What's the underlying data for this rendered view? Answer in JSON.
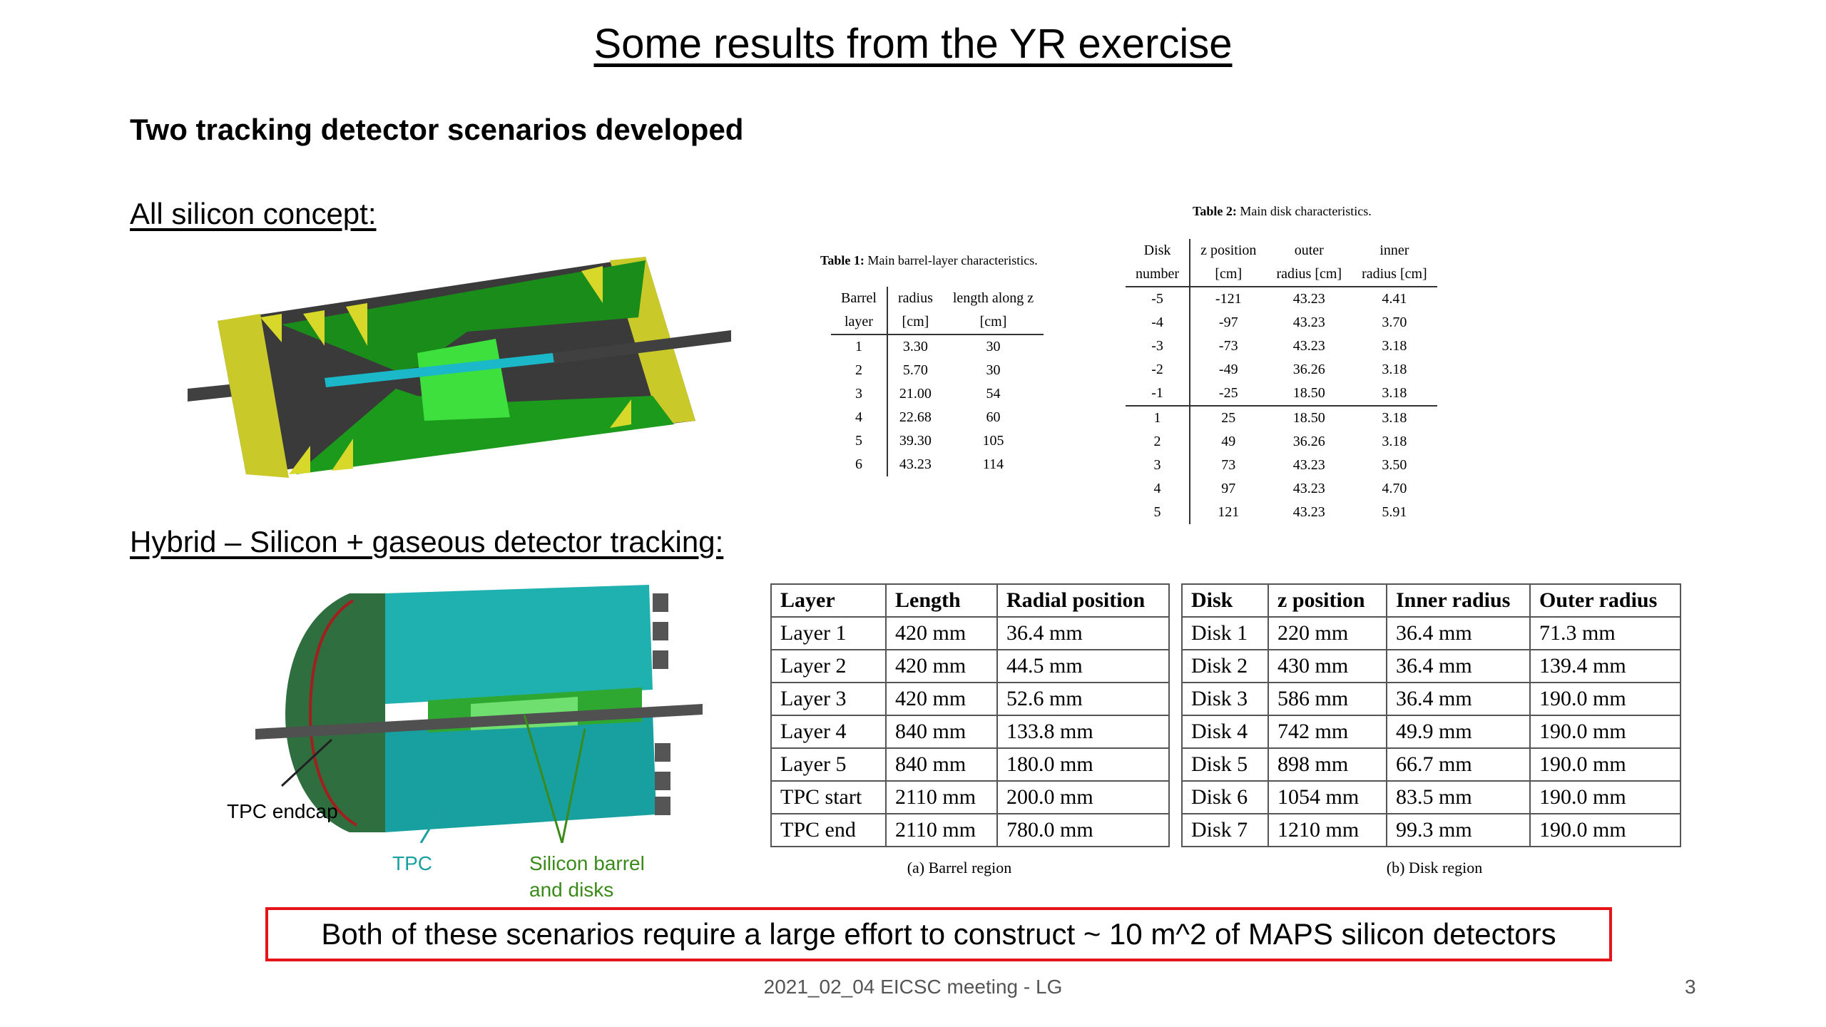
{
  "slide": {
    "title": "Some results from the YR exercise",
    "subtitle": "Two tracking detector scenarios developed",
    "section1": "All silicon concept:",
    "section2": "Hybrid – Silicon + gaseous detector tracking:",
    "conclusion": "Both of these scenarios require a large effort to construct ~ 10 m^2 of MAPS silicon detectors",
    "footer": "2021_02_04 EICSC meeting - LG",
    "page_number": "3"
  },
  "figure2_labels": {
    "tpc_endcap": "TPC endcap",
    "tpc": "TPC",
    "silicon_line1": "Silicon barrel",
    "silicon_line2": "and disks"
  },
  "colors": {
    "conclusion_border": "#e8141b",
    "tpc_label": "#1aa0a0",
    "silicon_label": "#3a8a1a"
  },
  "table1": {
    "caption_bold": "Table 1:",
    "caption_text": "Main barrel-layer characteristics.",
    "headers": [
      [
        "Barrel",
        "radius",
        "length along z"
      ],
      [
        "layer",
        "[cm]",
        "[cm]"
      ]
    ],
    "rows": [
      [
        "1",
        "3.30",
        "30"
      ],
      [
        "2",
        "5.70",
        "30"
      ],
      [
        "3",
        "21.00",
        "54"
      ],
      [
        "4",
        "22.68",
        "60"
      ],
      [
        "5",
        "39.30",
        "105"
      ],
      [
        "6",
        "43.23",
        "114"
      ]
    ]
  },
  "table2": {
    "caption_bold": "Table 2:",
    "caption_text": "Main disk characteristics.",
    "headers": [
      [
        "Disk",
        "z position",
        "outer",
        "inner"
      ],
      [
        "number",
        "[cm]",
        "radius [cm]",
        "radius [cm]"
      ]
    ],
    "rows": [
      [
        "-5",
        "-121",
        "43.23",
        "4.41"
      ],
      [
        "-4",
        "-97",
        "43.23",
        "3.70"
      ],
      [
        "-3",
        "-73",
        "43.23",
        "3.18"
      ],
      [
        "-2",
        "-49",
        "36.26",
        "3.18"
      ],
      [
        "-1",
        "-25",
        "18.50",
        "3.18"
      ],
      [
        "1",
        "25",
        "18.50",
        "3.18"
      ],
      [
        "2",
        "49",
        "36.26",
        "3.18"
      ],
      [
        "3",
        "73",
        "43.23",
        "3.50"
      ],
      [
        "4",
        "97",
        "43.23",
        "4.70"
      ],
      [
        "5",
        "121",
        "43.23",
        "5.91"
      ]
    ]
  },
  "table3": {
    "caption": "(a) Barrel region",
    "headers": [
      "Layer",
      "Length",
      "Radial position"
    ],
    "rows": [
      [
        "Layer 1",
        "420 mm",
        "36.4 mm"
      ],
      [
        "Layer 2",
        "420 mm",
        "44.5 mm"
      ],
      [
        "Layer 3",
        "420 mm",
        "52.6 mm"
      ],
      [
        "Layer 4",
        "840 mm",
        "133.8 mm"
      ],
      [
        "Layer 5",
        "840 mm",
        "180.0 mm"
      ],
      [
        "TPC start",
        "2110 mm",
        "200.0 mm"
      ],
      [
        "TPC end",
        "2110 mm",
        "780.0 mm"
      ]
    ]
  },
  "table4": {
    "caption": "(b) Disk region",
    "headers": [
      "Disk",
      "z position",
      "Inner radius",
      "Outer radius"
    ],
    "rows": [
      [
        "Disk 1",
        "220 mm",
        "36.4 mm",
        "71.3 mm"
      ],
      [
        "Disk 2",
        "430 mm",
        "36.4 mm",
        "139.4 mm"
      ],
      [
        "Disk 3",
        "586 mm",
        "36.4 mm",
        "190.0 mm"
      ],
      [
        "Disk 4",
        "742 mm",
        "49.9 mm",
        "190.0 mm"
      ],
      [
        "Disk 5",
        "898 mm",
        "66.7 mm",
        "190.0 mm"
      ],
      [
        "Disk 6",
        "1054 mm",
        "83.5 mm",
        "190.0 mm"
      ],
      [
        "Disk 7",
        "1210 mm",
        "99.3 mm",
        "190.0 mm"
      ]
    ]
  }
}
